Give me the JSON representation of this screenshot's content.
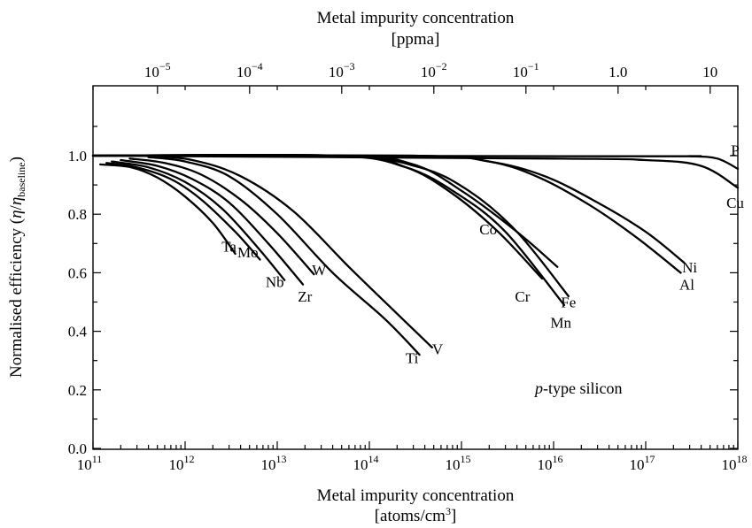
{
  "chart_data": {
    "type": "line",
    "xscale": "log",
    "xlim": [
      100000000000.0,
      1e+18
    ],
    "ylim": [
      0.0,
      1.2
    ],
    "grid": false,
    "xlabel_line1": "Metal impurity concentration",
    "xlabel_line2_base": "[atoms/cm",
    "xlabel_line2_sup": "3",
    "xlabel_line2_end": "]",
    "top_xlabel_line1": "Metal impurity concentration",
    "top_xlabel_line2": "[ppma]",
    "ylabel_main": "Normalised efficiency (",
    "ylabel_eta": "η",
    "ylabel_slash": "/",
    "ylabel_eta2": "η",
    "ylabel_sub": "baseline",
    "ylabel_end": ")",
    "annotation_italic": "p",
    "annotation_rest": "-type silicon",
    "y_ticks": [
      {
        "value": 0.0,
        "label": "0.0"
      },
      {
        "value": 0.2,
        "label": "0.2"
      },
      {
        "value": 0.4,
        "label": "0.4"
      },
      {
        "value": 0.6,
        "label": "0.6"
      },
      {
        "value": 0.8,
        "label": "0.8"
      },
      {
        "value": 1.0,
        "label": "1.0"
      }
    ],
    "y_minor_ticks": [
      0.1,
      0.3,
      0.5,
      0.7,
      0.9,
      1.1
    ],
    "x_ticks": [
      {
        "exp": 11,
        "base": "10",
        "sup": "11"
      },
      {
        "exp": 12,
        "base": "10",
        "sup": "12"
      },
      {
        "exp": 13,
        "base": "10",
        "sup": "13"
      },
      {
        "exp": 14,
        "base": "10",
        "sup": "14"
      },
      {
        "exp": 15,
        "base": "10",
        "sup": "15"
      },
      {
        "exp": 16,
        "base": "10",
        "sup": "16"
      },
      {
        "exp": 17,
        "base": "10",
        "sup": "17"
      },
      {
        "exp": 18,
        "base": "10",
        "sup": "18"
      }
    ],
    "top_ticks": [
      {
        "exp": 11.7,
        "base": "10",
        "sup": "−5"
      },
      {
        "exp": 12.7,
        "base": "10",
        "sup": "−4"
      },
      {
        "exp": 13.7,
        "base": "10",
        "sup": "−3"
      },
      {
        "exp": 14.7,
        "base": "10",
        "sup": "−2"
      },
      {
        "exp": 15.7,
        "base": "10",
        "sup": "−1"
      },
      {
        "exp": 16.7,
        "base": "1.0",
        "sup": ""
      },
      {
        "exp": 17.7,
        "base": "10",
        "sup": ""
      }
    ],
    "series": [
      {
        "name": "Ta",
        "label_x": 3000000000000.0,
        "label_y": 0.69,
        "points": [
          [
            120000000000.0,
            0.97
          ],
          [
            260000000000.0,
            0.96
          ],
          [
            500000000000.0,
            0.925
          ],
          [
            1000000000000.0,
            0.86
          ],
          [
            2000000000000.0,
            0.77
          ],
          [
            3500000000000.0,
            0.665
          ]
        ]
      },
      {
        "name": "Mo",
        "label_x": 4800000000000.0,
        "label_y": 0.67,
        "points": [
          [
            140000000000.0,
            0.975
          ],
          [
            300000000000.0,
            0.96
          ],
          [
            700000000000.0,
            0.92
          ],
          [
            1500000000000.0,
            0.85
          ],
          [
            3500000000000.0,
            0.74
          ],
          [
            6500000000000.0,
            0.645
          ]
        ]
      },
      {
        "name": "Nb",
        "label_x": 9400000000000.0,
        "label_y": 0.57,
        "points": [
          [
            160000000000.0,
            0.98
          ],
          [
            400000000000.0,
            0.96
          ],
          [
            1000000000000.0,
            0.91
          ],
          [
            2500000000000.0,
            0.82
          ],
          [
            6000000000000.0,
            0.69
          ],
          [
            12000000000000.0,
            0.575
          ]
        ]
      },
      {
        "name": "Zr",
        "label_x": 20000000000000.0,
        "label_y": 0.52,
        "points": [
          [
            200000000000.0,
            0.985
          ],
          [
            500000000000.0,
            0.965
          ],
          [
            1200000000000.0,
            0.92
          ],
          [
            3000000000000.0,
            0.84
          ],
          [
            8000000000000.0,
            0.7
          ],
          [
            19000000000000.0,
            0.56
          ]
        ]
      },
      {
        "name": "W",
        "label_x": 28500000000000.0,
        "label_y": 0.61,
        "points": [
          [
            250000000000.0,
            0.99
          ],
          [
            600000000000.0,
            0.975
          ],
          [
            1500000000000.0,
            0.935
          ],
          [
            4000000000000.0,
            0.85
          ],
          [
            10000000000000.0,
            0.735
          ],
          [
            25000000000000.0,
            0.595
          ]
        ]
      },
      {
        "name": "Ti",
        "label_x": 290000000000000.0,
        "label_y": 0.31,
        "points": [
          [
            400000000000.0,
            0.995
          ],
          [
            1000000000000.0,
            0.98
          ],
          [
            3000000000000.0,
            0.93
          ],
          [
            10000000000000.0,
            0.8
          ],
          [
            40000000000000.0,
            0.6
          ],
          [
            150000000000000.0,
            0.44
          ],
          [
            350000000000000.0,
            0.32
          ]
        ]
      },
      {
        "name": "V",
        "label_x": 550000000000000.0,
        "label_y": 0.34,
        "points": [
          [
            400000000000.0,
            1.0
          ],
          [
            1200000000000.0,
            0.985
          ],
          [
            4000000000000.0,
            0.93
          ],
          [
            15000000000000.0,
            0.81
          ],
          [
            60000000000000.0,
            0.62
          ],
          [
            200000000000000.0,
            0.46
          ],
          [
            480000000000000.0,
            0.345
          ]
        ]
      },
      {
        "name": "Co",
        "label_x": 1950000000000000.0,
        "label_y": 0.75,
        "points": [
          [
            100000000000.0,
            1.0
          ],
          [
            50000000000000.0,
            1.0
          ],
          [
            300000000000000.0,
            0.97
          ],
          [
            1000000000000000.0,
            0.88
          ],
          [
            4000000000000000.0,
            0.74
          ],
          [
            1.1e+16,
            0.62
          ]
        ]
      },
      {
        "name": "Cr",
        "label_x": 4600000000000000.0,
        "label_y": 0.52,
        "points": [
          [
            100000000000.0,
            1.0
          ],
          [
            50000000000000.0,
            1.0
          ],
          [
            250000000000000.0,
            0.96
          ],
          [
            800000000000000.0,
            0.87
          ],
          [
            2500000000000000.0,
            0.74
          ],
          [
            7500000000000000.0,
            0.58
          ]
        ]
      },
      {
        "name": "Fe",
        "label_x": 1.45e+16,
        "label_y": 0.5,
        "points": [
          [
            100000000000.0,
            1.0
          ],
          [
            45000000000000.0,
            1.0
          ],
          [
            350000000000000.0,
            0.96
          ],
          [
            1200000000000000.0,
            0.88
          ],
          [
            4000000000000000.0,
            0.74
          ],
          [
            1.45e+16,
            0.52
          ]
        ]
      },
      {
        "name": "Mn",
        "label_x": 1.2e+16,
        "label_y": 0.43,
        "points": [
          [
            100000000000.0,
            1.0
          ],
          [
            40000000000000.0,
            1.0
          ],
          [
            250000000000000.0,
            0.96
          ],
          [
            900000000000000.0,
            0.87
          ],
          [
            3000000000000000.0,
            0.74
          ],
          [
            1.3e+16,
            0.49
          ]
        ]
      },
      {
        "name": "Ni",
        "label_x": 3e+17,
        "label_y": 0.62,
        "points": [
          [
            100000000000.0,
            1.0
          ],
          [
            300000000000000.0,
            1.0
          ],
          [
            2000000000000000.0,
            0.98
          ],
          [
            8000000000000000.0,
            0.93
          ],
          [
            3e+16,
            0.84
          ],
          [
            1e+17,
            0.74
          ],
          [
            2.6e+17,
            0.635
          ]
        ]
      },
      {
        "name": "Al",
        "label_x": 2.8e+17,
        "label_y": 0.56,
        "points": [
          [
            100000000000.0,
            1.0
          ],
          [
            300000000000000.0,
            1.0
          ],
          [
            2000000000000000.0,
            0.98
          ],
          [
            7000000000000000.0,
            0.925
          ],
          [
            2.5e+16,
            0.83
          ],
          [
            8e+16,
            0.72
          ],
          [
            2.4e+17,
            0.6
          ]
        ]
      },
      {
        "name": "Cu",
        "label_x": 1.8e+18,
        "label_y": 0.84,
        "points": [
          [
            100000000000.0,
            1.0
          ],
          [
            1e+16,
            0.99
          ],
          [
            1e+17,
            0.985
          ],
          [
            4e+17,
            0.965
          ],
          [
            1e+18,
            0.89
          ]
        ]
      },
      {
        "name": "P",
        "label_x": 2.9e+18,
        "label_y": 1.02,
        "points": [
          [
            100000000000.0,
            1.0
          ],
          [
            1e+17,
            0.998
          ],
          [
            3e+17,
            0.998
          ],
          [
            6e+17,
            0.99
          ],
          [
            1e+18,
            0.955
          ]
        ]
      }
    ]
  }
}
